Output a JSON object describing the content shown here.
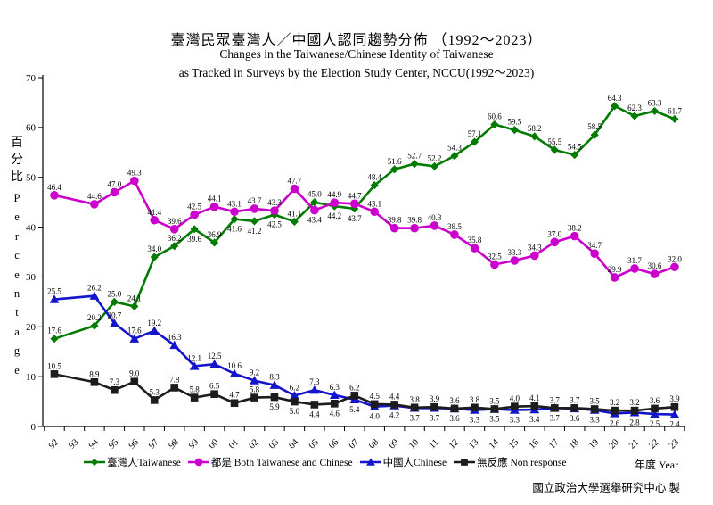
{
  "header": {
    "title_zh": "臺灣民眾臺灣人／中國人認同趨勢分佈 （1992～2023）",
    "subtitle_en_line1": "Changes in the Taiwanese/Chinese Identity of Taiwanese",
    "subtitle_en_line2": "as Tracked in Surveys by the Election Study Center, NCCU(1992～2023)"
  },
  "axes": {
    "y_title_zh": "百分比",
    "y_title_en": "Percentage",
    "x_title": "年度 Year"
  },
  "footer": {
    "credit": "國立政治大學選舉研究中心 製"
  },
  "chart_data": {
    "type": "line",
    "title": "臺灣民眾臺灣人／中國人認同趨勢分佈 （1992～2023）",
    "xlabel": "年度 Year",
    "ylabel": "百分比 Percentage",
    "ylim": [
      0,
      70
    ],
    "y_ticks": [
      0,
      10,
      20,
      30,
      40,
      50,
      60,
      70
    ],
    "grid": false,
    "legend_position": "bottom",
    "x_categories": [
      "92",
      "93",
      "94",
      "95",
      "96",
      "97",
      "98",
      "99",
      "00",
      "01",
      "02",
      "03",
      "04",
      "05",
      "06",
      "07",
      "08",
      "09",
      "10",
      "11",
      "12",
      "13",
      "14",
      "15",
      "16",
      "17",
      "18",
      "19",
      "20",
      "21",
      "22",
      "23"
    ],
    "series": [
      {
        "key": "taiwanese",
        "name": "臺灣人Taiwanese",
        "color": "#007B00",
        "marker": "diamond",
        "points": [
          [
            "92",
            17.6,
            "a"
          ],
          [
            "94",
            20.2,
            "a"
          ],
          [
            "95",
            25.0,
            "a"
          ],
          [
            "96",
            24.1,
            "a"
          ],
          [
            "97",
            34.0,
            "a"
          ],
          [
            "98",
            36.2,
            "a"
          ],
          [
            "99",
            39.6,
            "b"
          ],
          [
            "00",
            36.9,
            "a"
          ],
          [
            "01",
            41.6,
            "b"
          ],
          [
            "02",
            41.2,
            "b"
          ],
          [
            "03",
            42.5,
            "b"
          ],
          [
            "04",
            41.1,
            "a"
          ],
          [
            "05",
            45.0,
            "a"
          ],
          [
            "06",
            44.2,
            "b"
          ],
          [
            "07",
            43.7,
            "b"
          ],
          [
            "08",
            48.4,
            "a"
          ],
          [
            "09",
            51.6,
            "a"
          ],
          [
            "10",
            52.7,
            "a"
          ],
          [
            "11",
            52.2,
            "a"
          ],
          [
            "12",
            54.3,
            "a"
          ],
          [
            "13",
            57.1,
            "a"
          ],
          [
            "14",
            60.6,
            "a"
          ],
          [
            "15",
            59.5,
            "a"
          ],
          [
            "16",
            58.2,
            "a"
          ],
          [
            "17",
            55.5,
            "a"
          ],
          [
            "18",
            54.5,
            "a"
          ],
          [
            "19",
            58.5,
            "a"
          ],
          [
            "20",
            64.3,
            "a"
          ],
          [
            "21",
            62.3,
            "a"
          ],
          [
            "22",
            63.3,
            "a"
          ],
          [
            "23",
            61.7,
            "a"
          ]
        ]
      },
      {
        "key": "both",
        "name": "都是 Both Taiwanese and Chinese",
        "color": "#CC00CC",
        "marker": "circle",
        "points": [
          [
            "92",
            46.4,
            "a"
          ],
          [
            "94",
            44.6,
            "a"
          ],
          [
            "95",
            47.0,
            "a"
          ],
          [
            "96",
            49.3,
            "a"
          ],
          [
            "97",
            41.4,
            "a"
          ],
          [
            "98",
            39.6,
            "a"
          ],
          [
            "99",
            42.5,
            "a"
          ],
          [
            "00",
            44.1,
            "a"
          ],
          [
            "01",
            43.1,
            "a"
          ],
          [
            "02",
            43.7,
            "a"
          ],
          [
            "03",
            43.3,
            "a"
          ],
          [
            "04",
            47.7,
            "a"
          ],
          [
            "05",
            43.4,
            "b"
          ],
          [
            "06",
            44.9,
            "a"
          ],
          [
            "07",
            44.7,
            "a"
          ],
          [
            "08",
            43.1,
            "a"
          ],
          [
            "09",
            39.8,
            "a"
          ],
          [
            "10",
            39.8,
            "a"
          ],
          [
            "11",
            40.3,
            "a"
          ],
          [
            "12",
            38.5,
            "a"
          ],
          [
            "13",
            35.8,
            "a"
          ],
          [
            "14",
            32.5,
            "a"
          ],
          [
            "15",
            33.3,
            "a"
          ],
          [
            "16",
            34.3,
            "a"
          ],
          [
            "17",
            37.0,
            "a"
          ],
          [
            "18",
            38.2,
            "a"
          ],
          [
            "19",
            34.7,
            "a"
          ],
          [
            "20",
            29.9,
            "a"
          ],
          [
            "21",
            31.7,
            "a"
          ],
          [
            "22",
            30.6,
            "a"
          ],
          [
            "23",
            32.0,
            "a"
          ]
        ]
      },
      {
        "key": "chinese",
        "name": "中國人Chinese",
        "color": "#1414CC",
        "marker": "triangle",
        "points": [
          [
            "92",
            25.5,
            "a"
          ],
          [
            "94",
            26.2,
            "a"
          ],
          [
            "95",
            20.7,
            "a"
          ],
          [
            "96",
            17.6,
            "a"
          ],
          [
            "97",
            19.2,
            "a"
          ],
          [
            "98",
            16.3,
            "a"
          ],
          [
            "99",
            12.1,
            "a"
          ],
          [
            "00",
            12.5,
            "a"
          ],
          [
            "01",
            10.6,
            "a"
          ],
          [
            "02",
            9.2,
            "a"
          ],
          [
            "03",
            8.3,
            "a"
          ],
          [
            "04",
            6.2,
            "a"
          ],
          [
            "05",
            7.3,
            "a"
          ],
          [
            "06",
            6.3,
            "a"
          ],
          [
            "07",
            5.4,
            "b"
          ],
          [
            "08",
            4.0,
            "b"
          ],
          [
            "09",
            4.2,
            "b"
          ],
          [
            "10",
            3.7,
            "b"
          ],
          [
            "11",
            3.7,
            "b"
          ],
          [
            "12",
            3.6,
            "b"
          ],
          [
            "13",
            3.3,
            "b"
          ],
          [
            "14",
            3.5,
            "b"
          ],
          [
            "15",
            3.3,
            "b"
          ],
          [
            "16",
            3.4,
            "b"
          ],
          [
            "17",
            3.7,
            "b"
          ],
          [
            "18",
            3.6,
            "b"
          ],
          [
            "19",
            3.3,
            "b"
          ],
          [
            "20",
            2.6,
            "b"
          ],
          [
            "21",
            2.8,
            "b"
          ],
          [
            "22",
            2.5,
            "b"
          ],
          [
            "23",
            2.4,
            "b"
          ]
        ]
      },
      {
        "key": "non-response",
        "name": "無反應 Non response",
        "color": "#1C1C1C",
        "marker": "square",
        "points": [
          [
            "92",
            10.5,
            "a"
          ],
          [
            "94",
            8.9,
            "a"
          ],
          [
            "95",
            7.3,
            "a"
          ],
          [
            "96",
            9.0,
            "a"
          ],
          [
            "97",
            5.3,
            "a"
          ],
          [
            "98",
            7.8,
            "a"
          ],
          [
            "99",
            5.8,
            "a"
          ],
          [
            "00",
            6.5,
            "a"
          ],
          [
            "01",
            4.7,
            "a"
          ],
          [
            "02",
            5.8,
            "a"
          ],
          [
            "03",
            5.9,
            "b"
          ],
          [
            "04",
            5.0,
            "b"
          ],
          [
            "05",
            4.4,
            "b"
          ],
          [
            "06",
            4.6,
            "b"
          ],
          [
            "07",
            6.2,
            "a"
          ],
          [
            "08",
            4.5,
            "a"
          ],
          [
            "09",
            4.4,
            "a"
          ],
          [
            "10",
            3.8,
            "a"
          ],
          [
            "11",
            3.9,
            "a"
          ],
          [
            "12",
            3.6,
            "a"
          ],
          [
            "13",
            3.8,
            "a"
          ],
          [
            "14",
            3.5,
            "a"
          ],
          [
            "15",
            4.0,
            "a"
          ],
          [
            "16",
            4.1,
            "a"
          ],
          [
            "17",
            3.7,
            "a"
          ],
          [
            "18",
            3.7,
            "a"
          ],
          [
            "19",
            3.5,
            "a"
          ],
          [
            "20",
            3.2,
            "a"
          ],
          [
            "21",
            3.2,
            "a"
          ],
          [
            "22",
            3.6,
            "a"
          ],
          [
            "23",
            3.9,
            "a"
          ]
        ]
      }
    ]
  }
}
